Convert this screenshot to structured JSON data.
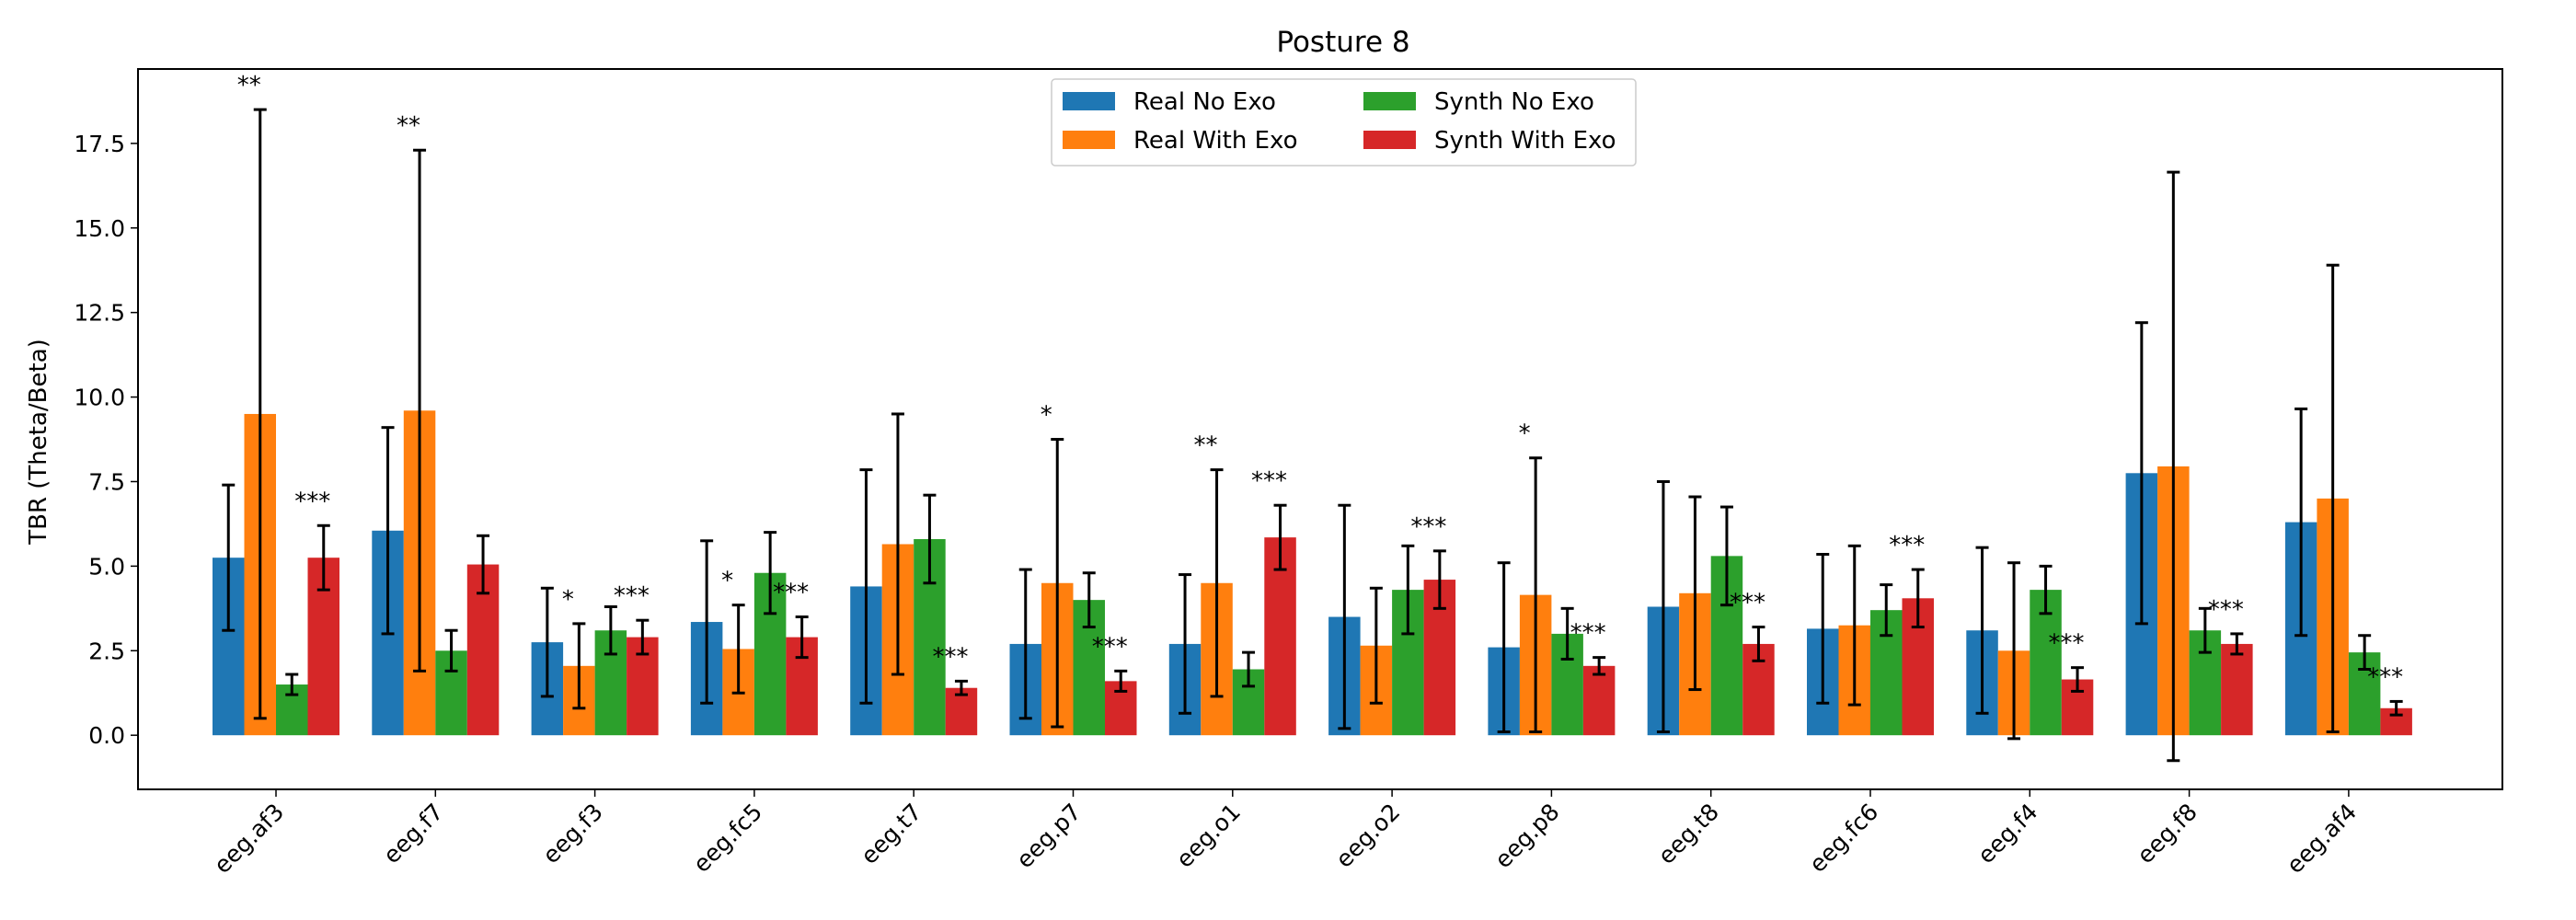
{
  "chart_data": {
    "type": "bar",
    "title": "Posture 8",
    "xlabel": "",
    "ylabel": "TBR (Theta/Beta)",
    "ylim": [
      -1.6,
      19.7
    ],
    "yticks": [
      0.0,
      2.5,
      5.0,
      7.5,
      10.0,
      12.5,
      15.0,
      17.5
    ],
    "ytick_labels": [
      "0.0",
      "2.5",
      "5.0",
      "7.5",
      "10.0",
      "12.5",
      "15.0",
      "17.5"
    ],
    "grid": false,
    "legend_position": "top-center",
    "categories": [
      "eeg.af3",
      "eeg.f7",
      "eeg.f3",
      "eeg.fc5",
      "eeg.t7",
      "eeg.p7",
      "eeg.o1",
      "eeg.o2",
      "eeg.p8",
      "eeg.t8",
      "eeg.fc6",
      "eeg.f4",
      "eeg.f8",
      "eeg.af4"
    ],
    "series": [
      {
        "name": "Real No Exo",
        "color": "#1f77b4",
        "values": [
          5.25,
          6.05,
          2.75,
          3.35,
          4.4,
          2.7,
          2.7,
          3.5,
          2.6,
          3.8,
          3.15,
          3.1,
          7.75,
          6.3
        ],
        "errors": [
          2.15,
          3.05,
          1.6,
          2.4,
          3.45,
          2.2,
          2.05,
          3.3,
          2.5,
          3.7,
          2.2,
          2.45,
          4.45,
          3.35
        ]
      },
      {
        "name": "Real With Exo",
        "color": "#ff7f0e",
        "values": [
          9.5,
          9.6,
          2.05,
          2.55,
          5.65,
          4.5,
          4.5,
          2.65,
          4.15,
          4.2,
          3.25,
          2.5,
          7.95,
          7.0
        ],
        "errors": [
          9.0,
          7.7,
          1.25,
          1.3,
          3.85,
          4.25,
          3.35,
          1.7,
          4.05,
          2.85,
          2.35,
          2.6,
          8.7,
          6.9
        ]
      },
      {
        "name": "Synth No Exo",
        "color": "#2ca02c",
        "values": [
          1.5,
          2.5,
          3.1,
          4.8,
          5.8,
          4.0,
          1.95,
          4.3,
          3.0,
          5.3,
          3.7,
          4.3,
          3.1,
          2.45
        ],
        "errors": [
          0.3,
          0.6,
          0.7,
          1.2,
          1.3,
          0.8,
          0.5,
          1.3,
          0.75,
          1.45,
          0.75,
          0.7,
          0.65,
          0.5
        ]
      },
      {
        "name": "Synth With Exo",
        "color": "#d62728",
        "values": [
          5.25,
          5.05,
          2.9,
          2.9,
          1.4,
          1.6,
          5.85,
          4.6,
          2.05,
          2.7,
          4.05,
          1.65,
          2.7,
          0.8
        ],
        "errors": [
          0.95,
          0.85,
          0.5,
          0.6,
          0.2,
          0.3,
          0.95,
          0.85,
          0.25,
          0.5,
          0.85,
          0.35,
          0.3,
          0.2
        ]
      }
    ],
    "annotations": [
      {
        "category": "eeg.af3",
        "series": "Real With Exo",
        "label": "**"
      },
      {
        "category": "eeg.af3",
        "series": "Synth With Exo",
        "label": "***"
      },
      {
        "category": "eeg.f7",
        "series": "Real With Exo",
        "label": "**"
      },
      {
        "category": "eeg.f3",
        "series": "Real With Exo",
        "label": "*"
      },
      {
        "category": "eeg.f3",
        "series": "Synth With Exo",
        "label": "***"
      },
      {
        "category": "eeg.fc5",
        "series": "Real With Exo",
        "label": "*"
      },
      {
        "category": "eeg.fc5",
        "series": "Synth With Exo",
        "label": "***"
      },
      {
        "category": "eeg.t7",
        "series": "Synth With Exo",
        "label": "***"
      },
      {
        "category": "eeg.p7",
        "series": "Real With Exo",
        "label": "*"
      },
      {
        "category": "eeg.p7",
        "series": "Synth With Exo",
        "label": "***"
      },
      {
        "category": "eeg.o1",
        "series": "Real With Exo",
        "label": "**"
      },
      {
        "category": "eeg.o1",
        "series": "Synth With Exo",
        "label": "***"
      },
      {
        "category": "eeg.o2",
        "series": "Synth With Exo",
        "label": "***"
      },
      {
        "category": "eeg.p8",
        "series": "Real With Exo",
        "label": "*"
      },
      {
        "category": "eeg.p8",
        "series": "Synth With Exo",
        "label": "***"
      },
      {
        "category": "eeg.t8",
        "series": "Synth With Exo",
        "label": "***"
      },
      {
        "category": "eeg.fc6",
        "series": "Synth With Exo",
        "label": "***"
      },
      {
        "category": "eeg.f4",
        "series": "Synth With Exo",
        "label": "***"
      },
      {
        "category": "eeg.f8",
        "series": "Synth With Exo",
        "label": "***"
      },
      {
        "category": "eeg.af4",
        "series": "Synth With Exo",
        "label": "***"
      }
    ]
  }
}
